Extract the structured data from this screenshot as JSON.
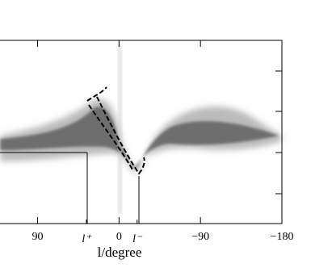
{
  "chart_data": {
    "type": "density",
    "x_label": "l/degree",
    "xlim": [
      131.5,
      -180
    ],
    "xticks": [
      90,
      0,
      {
        "value": -90,
        "label": "−90"
      },
      {
        "value": -180,
        "label": "−180"
      }
    ],
    "annotations": [
      {
        "value": 36,
        "label": "l⁺"
      },
      {
        "value": -20,
        "label": "l⁻"
      }
    ]
  }
}
